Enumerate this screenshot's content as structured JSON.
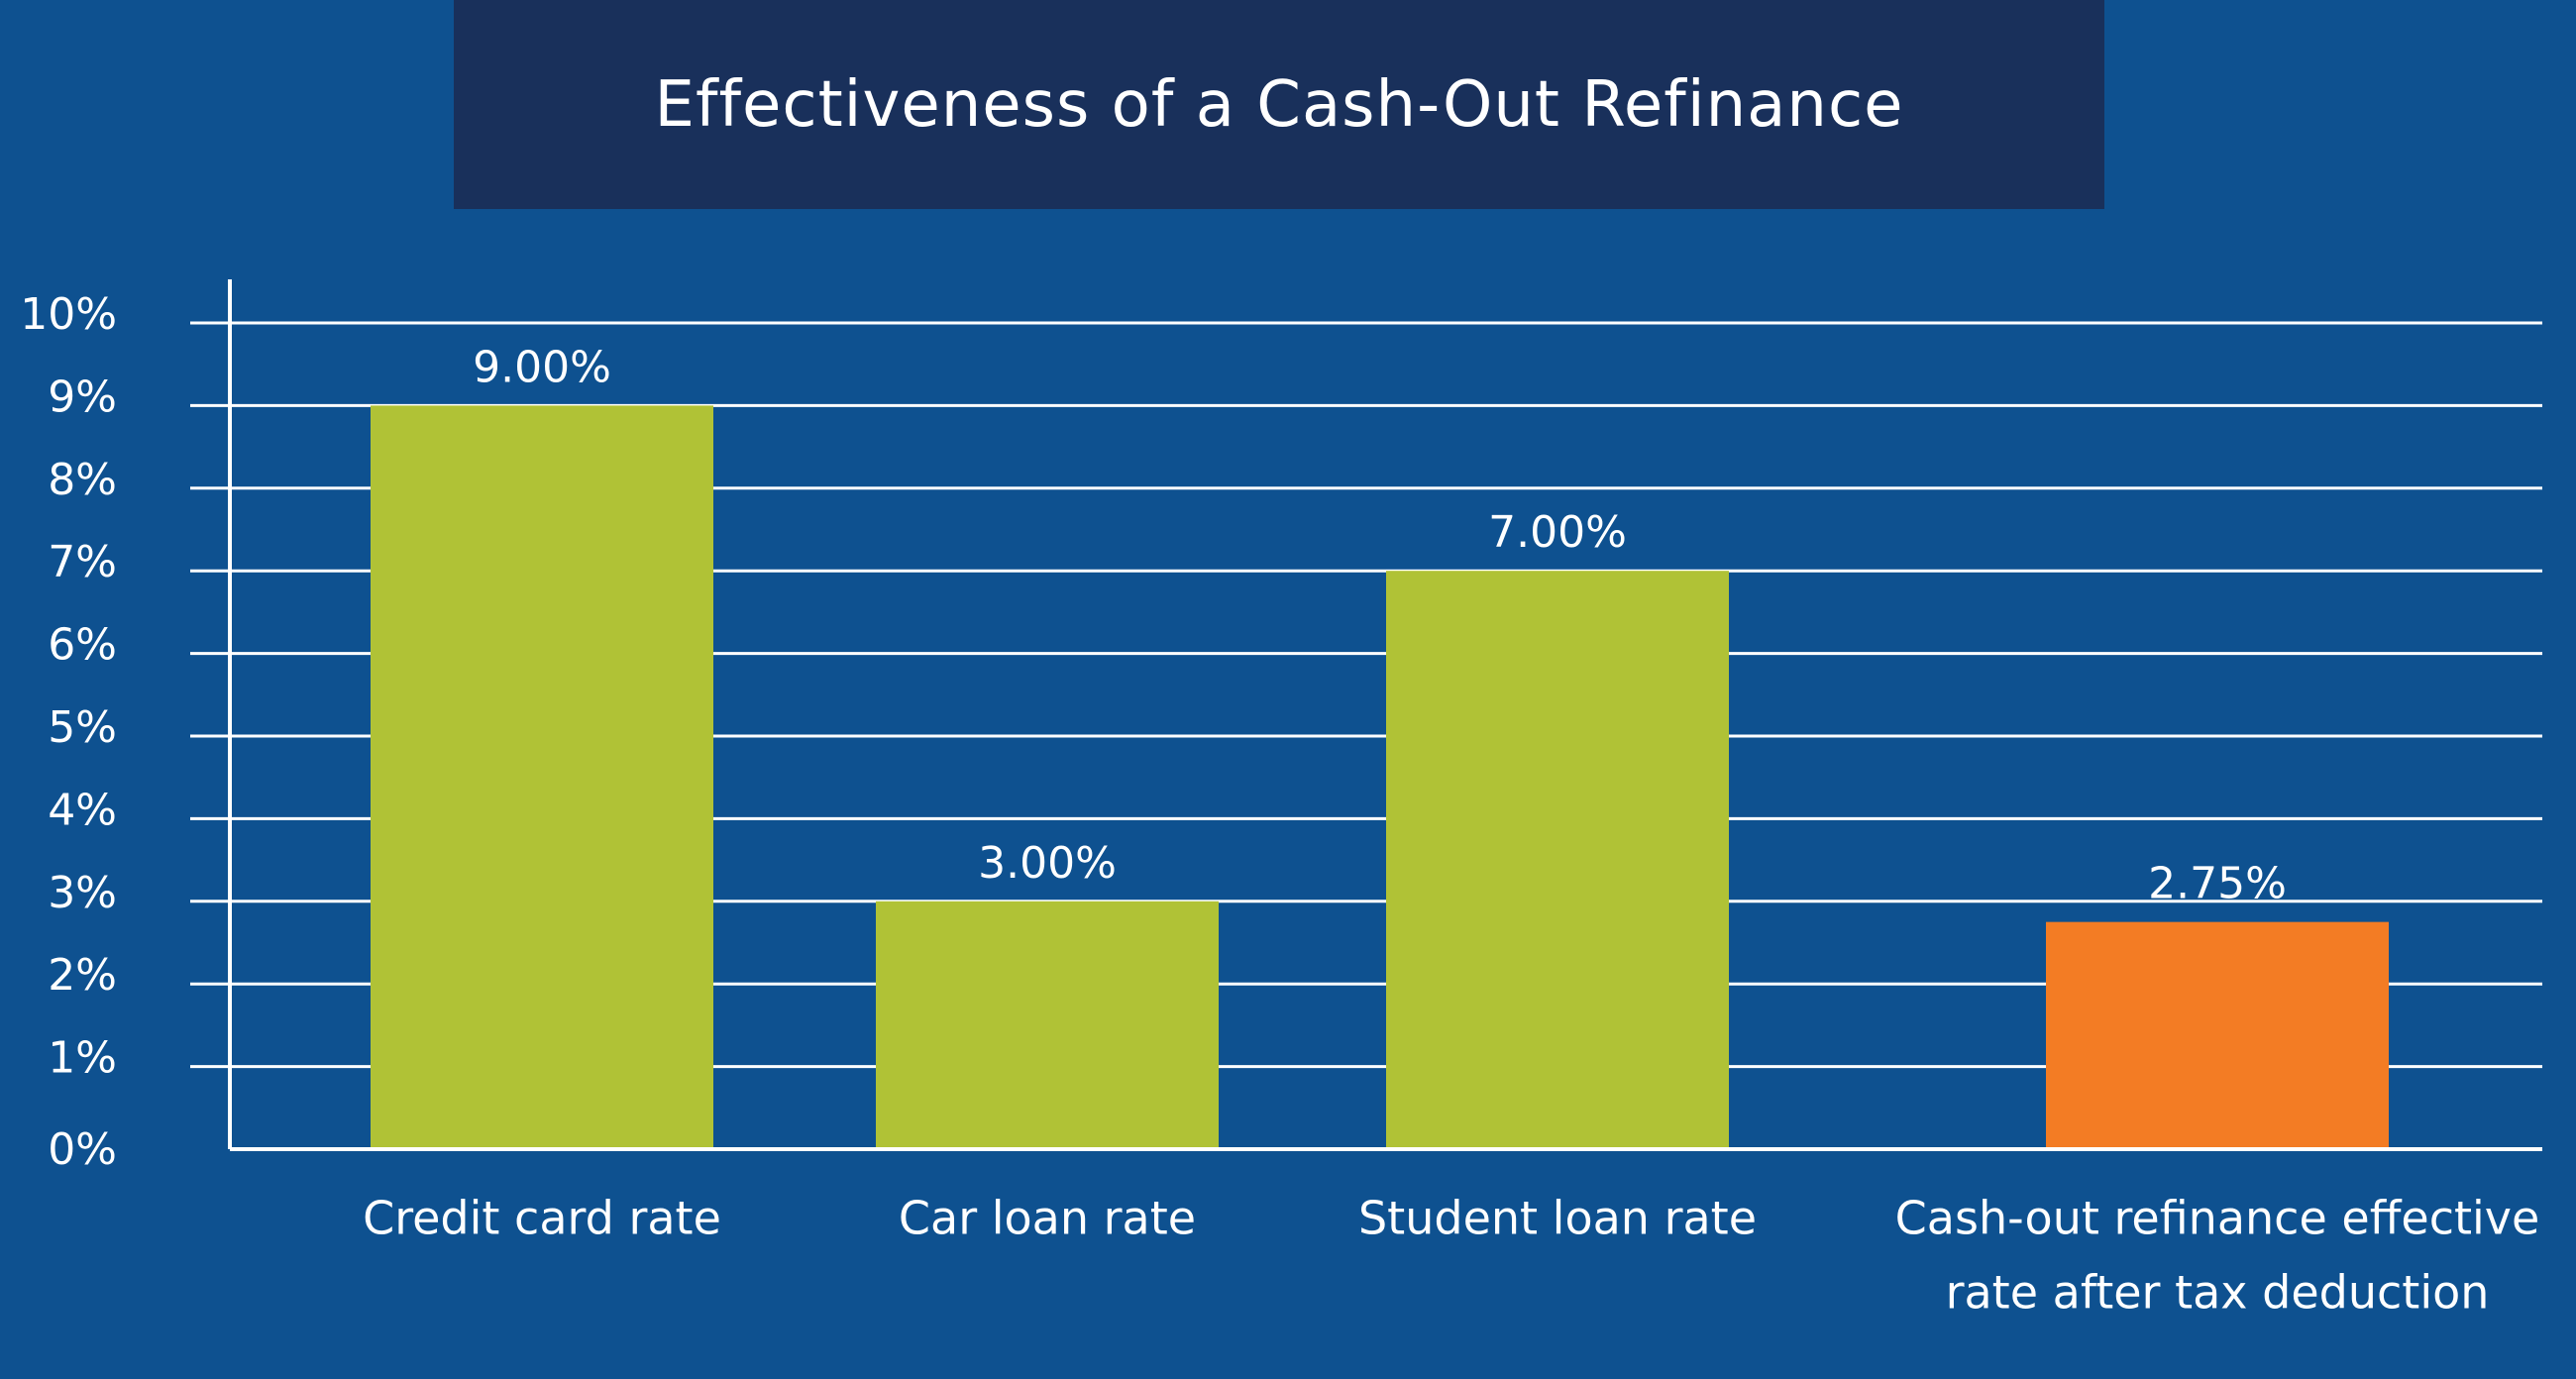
{
  "chart_data": {
    "type": "bar",
    "title": "Effectiveness of a Cash-Out Refinance",
    "categories": [
      [
        "Credit card rate"
      ],
      [
        "Car loan rate"
      ],
      [
        "Student loan rate"
      ],
      [
        "Cash-out refinance effective",
        "rate after tax deduction"
      ]
    ],
    "values": [
      9.0,
      3.0,
      7.0,
      2.75
    ],
    "data_labels": [
      "9.00%",
      "3.00%",
      "7.00%",
      "2.75%"
    ],
    "bar_colors": [
      "#b0c236",
      "#b0c236",
      "#b0c236",
      "#f37c24"
    ],
    "ylim": [
      0,
      10
    ],
    "y_ticks": [
      {
        "value": 0,
        "label": "0%"
      },
      {
        "value": 1,
        "label": "1%"
      },
      {
        "value": 2,
        "label": "2%"
      },
      {
        "value": 3,
        "label": "3%"
      },
      {
        "value": 4,
        "label": "4%"
      },
      {
        "value": 5,
        "label": "5%"
      },
      {
        "value": 6,
        "label": "6%"
      },
      {
        "value": 7,
        "label": "7%"
      },
      {
        "value": 8,
        "label": "8%"
      },
      {
        "value": 9,
        "label": "9%"
      },
      {
        "value": 10,
        "label": "10%"
      }
    ],
    "grid": true,
    "xlabel": "",
    "ylabel": ""
  },
  "colors": {
    "background": "#0e5190",
    "title_background": "#19305b",
    "text": "#ffffff",
    "gridline": "#ffffff"
  }
}
